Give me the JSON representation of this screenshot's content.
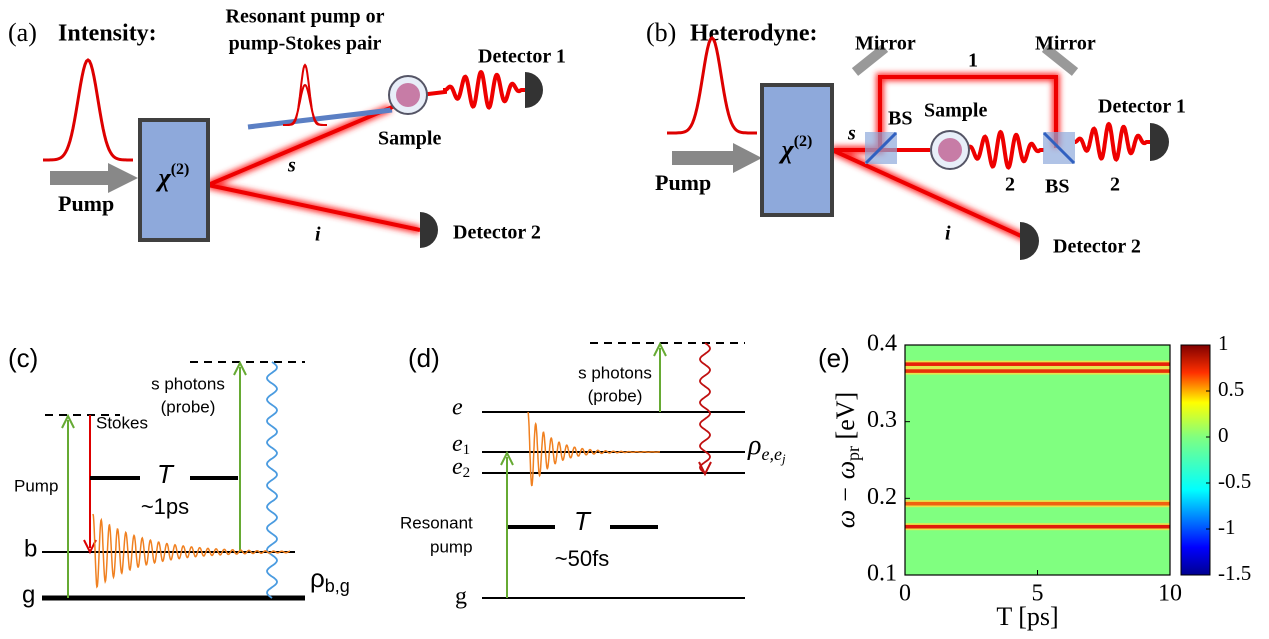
{
  "panel_a": {
    "label": "(a)",
    "title": "Intensity:",
    "pump_label": "Resonant pump or",
    "pump_label_2": "pump-Stokes pair",
    "crystal": {
      "symbol": "χ",
      "superscript": "(2)"
    },
    "pump": "Pump",
    "signal": "s",
    "idler": "i",
    "sample": "Sample",
    "detector_1": "Detector 1",
    "detector_2": "Detector 2"
  },
  "panel_b": {
    "label": "(b)",
    "title": "Heterodyne:",
    "mirror_1": "Mirror",
    "mirror_2": "Mirror",
    "path_1": "1",
    "path_2a": "2",
    "path_2b": "2",
    "bs_1": "BS",
    "bs_2": "BS",
    "crystal": {
      "symbol": "χ",
      "superscript": "(2)"
    },
    "pump": "Pump",
    "signal": "s",
    "idler": "i",
    "sample": "Sample",
    "detector_1": "Detector 1",
    "detector_2": "Detector 2"
  },
  "panel_c": {
    "label": "(c)",
    "pump": "Pump",
    "stokes": "Stokes",
    "delay": "T",
    "delay_value": "~1ps",
    "probe": "s photons",
    "probe_2": "(probe)",
    "level_b": "b",
    "level_g": "g",
    "coherence": {
      "symbol": "ρ",
      "subscript": "b,g"
    }
  },
  "panel_d": {
    "label": "(d)",
    "pump": "Resonant",
    "pump_2": "pump",
    "delay": "T",
    "delay_value": "~50fs",
    "probe": "s photons",
    "probe_2": "(probe)",
    "level_e": "e",
    "level_e1": {
      "symbol": "e",
      "subscript": "1"
    },
    "level_e2": {
      "symbol": "e",
      "subscript": "2"
    },
    "level_g": "g",
    "coherence": {
      "symbol": "ρ",
      "subscript": "e,e",
      "subsubscript": "j"
    }
  },
  "chart_data": {
    "type": "heatmap",
    "label": "(e)",
    "xlabel": "T [ps]",
    "ylabel": {
      "main": "ω − ω",
      "subscript": "pr",
      "tail": " [eV]"
    },
    "xlim": [
      0,
      10
    ],
    "ylim": [
      0.1,
      0.4
    ],
    "xticks": [
      0,
      5,
      10
    ],
    "yticks": [
      0.1,
      0.2,
      0.3,
      0.4
    ],
    "background_color": "#80ff80",
    "bands": [
      0.375,
      0.366,
      0.193,
      0.163
    ],
    "band_colors": [
      "#e8200a",
      "#e8300a",
      "#f06010",
      "#e01a0a"
    ],
    "colorbar": {
      "lim": [
        -1.5,
        1
      ],
      "ticks": [
        1,
        0.5,
        0,
        -0.5,
        -1,
        -1.5
      ]
    }
  }
}
